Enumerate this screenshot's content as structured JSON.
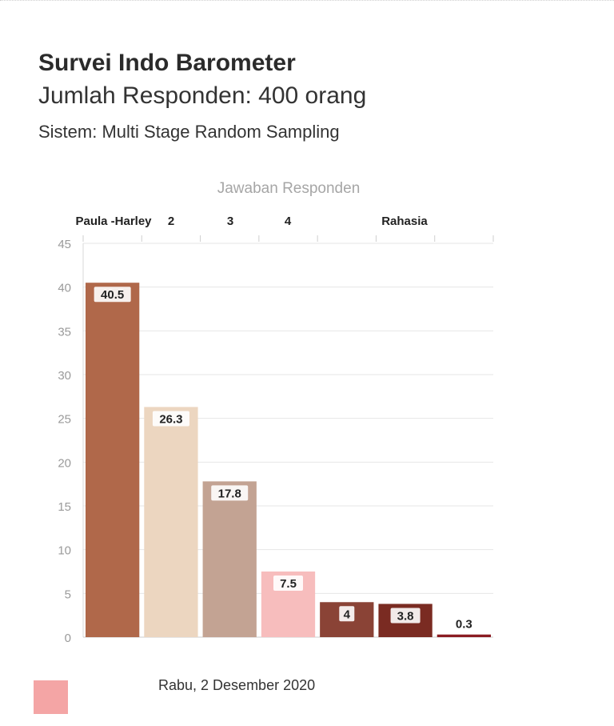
{
  "header": {
    "title": "Survei Indo Barometer",
    "subtitle": "Jumlah Responden: 400 orang",
    "method": "Sistem: Multi Stage Random Sampling"
  },
  "footer": {
    "date": "Rabu, 2 Desember 2020"
  },
  "chart_data": {
    "type": "bar",
    "title": "Jawaban Responden",
    "top_labels": [
      "Paula -Harley",
      "2",
      "3",
      "4",
      "Rahasia"
    ],
    "categories": [
      "Paula -Harley",
      "2",
      "3",
      "4",
      "",
      "",
      "Rahasia"
    ],
    "values": [
      40.5,
      26.3,
      17.8,
      7.5,
      4,
      3.8,
      0.3
    ],
    "value_labels": [
      "40.5",
      "26.3",
      "17.8",
      "7.5",
      "4",
      "3.8",
      "0.3"
    ],
    "colors": [
      "#b0684a",
      "#ecd6c0",
      "#c3a393",
      "#f7bdbd",
      "#8a4336",
      "#7a2b22",
      "#8b1c22"
    ],
    "ylim": [
      0,
      45
    ],
    "yticks": [
      0,
      5,
      10,
      15,
      20,
      25,
      30,
      35,
      40,
      45
    ],
    "grid": true,
    "legend_swatch_color": "#f4a5a5"
  }
}
